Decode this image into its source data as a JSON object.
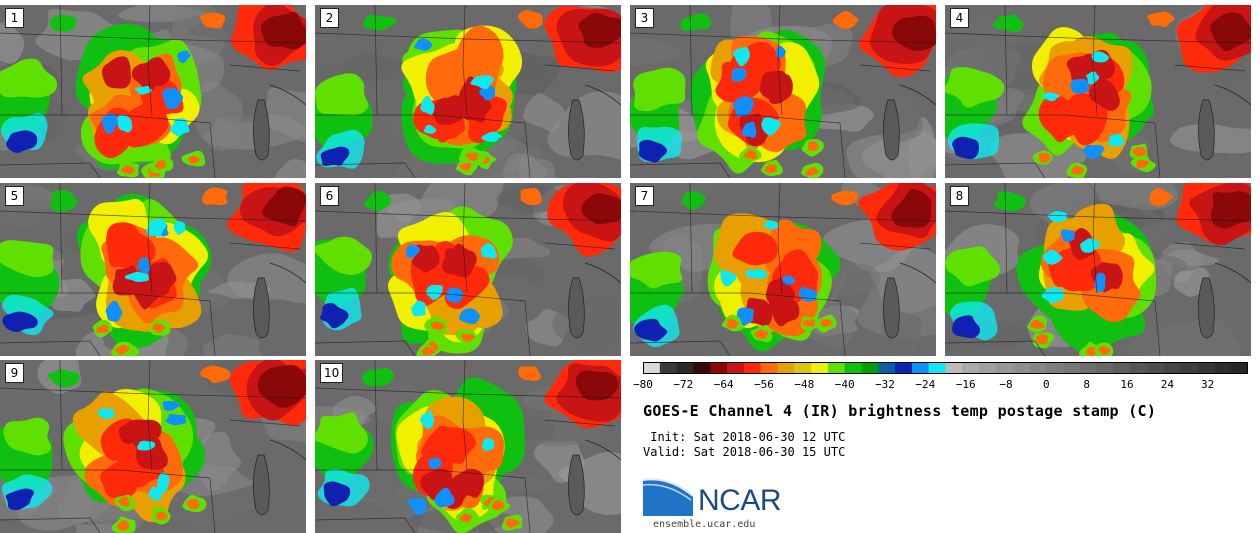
{
  "panels": [
    {
      "label": "1"
    },
    {
      "label": "2"
    },
    {
      "label": "3"
    },
    {
      "label": "4"
    },
    {
      "label": "5"
    },
    {
      "label": "6"
    },
    {
      "label": "7"
    },
    {
      "label": "8"
    },
    {
      "label": "9"
    },
    {
      "label": "10"
    }
  ],
  "title": "GOES-E Channel 4 (IR) brightness temp postage stamp (C)",
  "init_text": " Init: Sat 2018-06-30 12 UTC",
  "valid_text": "Valid: Sat 2018-06-30 15 UTC",
  "logo_text": "NCAR",
  "site_url": "ensemble.ucar.edu",
  "chart_data": {
    "type": "heatmap",
    "title": "GOES-E Channel 4 (IR) brightness temp postage stamp (C)",
    "units": "C",
    "members": [
      "1",
      "2",
      "3",
      "4",
      "5",
      "6",
      "7",
      "8",
      "9",
      "10"
    ],
    "colorbar": {
      "range": [
        -80,
        40
      ],
      "tick_values": [
        -80,
        -72,
        -64,
        -56,
        -48,
        -40,
        -32,
        -24,
        -16,
        -8,
        0,
        8,
        16,
        24,
        32
      ],
      "tick_labels": [
        "−80",
        "−72",
        "−64",
        "−56",
        "−48",
        "−40",
        "−32",
        "−24",
        "−16",
        "−8",
        "0",
        "8",
        "16",
        "24",
        "32"
      ],
      "colors": [
        "#d8d8d8",
        "#3a3a3a",
        "#2a2a2a",
        "#3a0a0a",
        "#8a0808",
        "#c81414",
        "#ff2a0a",
        "#ff6a0a",
        "#e8a000",
        "#d8c800",
        "#f0f000",
        "#60e000",
        "#10c010",
        "#00a000",
        "#0a60a0",
        "#1020b0",
        "#1090ff",
        "#10e8f0",
        "#bcbcbc",
        "#aaaaaa",
        "#a0a0a0",
        "#969696",
        "#8e8e8e",
        "#868686",
        "#7e7e7e",
        "#767676",
        "#6e6e6e",
        "#666666",
        "#5e5e5e",
        "#565656",
        "#4e4e4e",
        "#464646",
        "#3e3e3e",
        "#363636",
        "#2e2e2e",
        "#262626"
      ]
    }
  }
}
